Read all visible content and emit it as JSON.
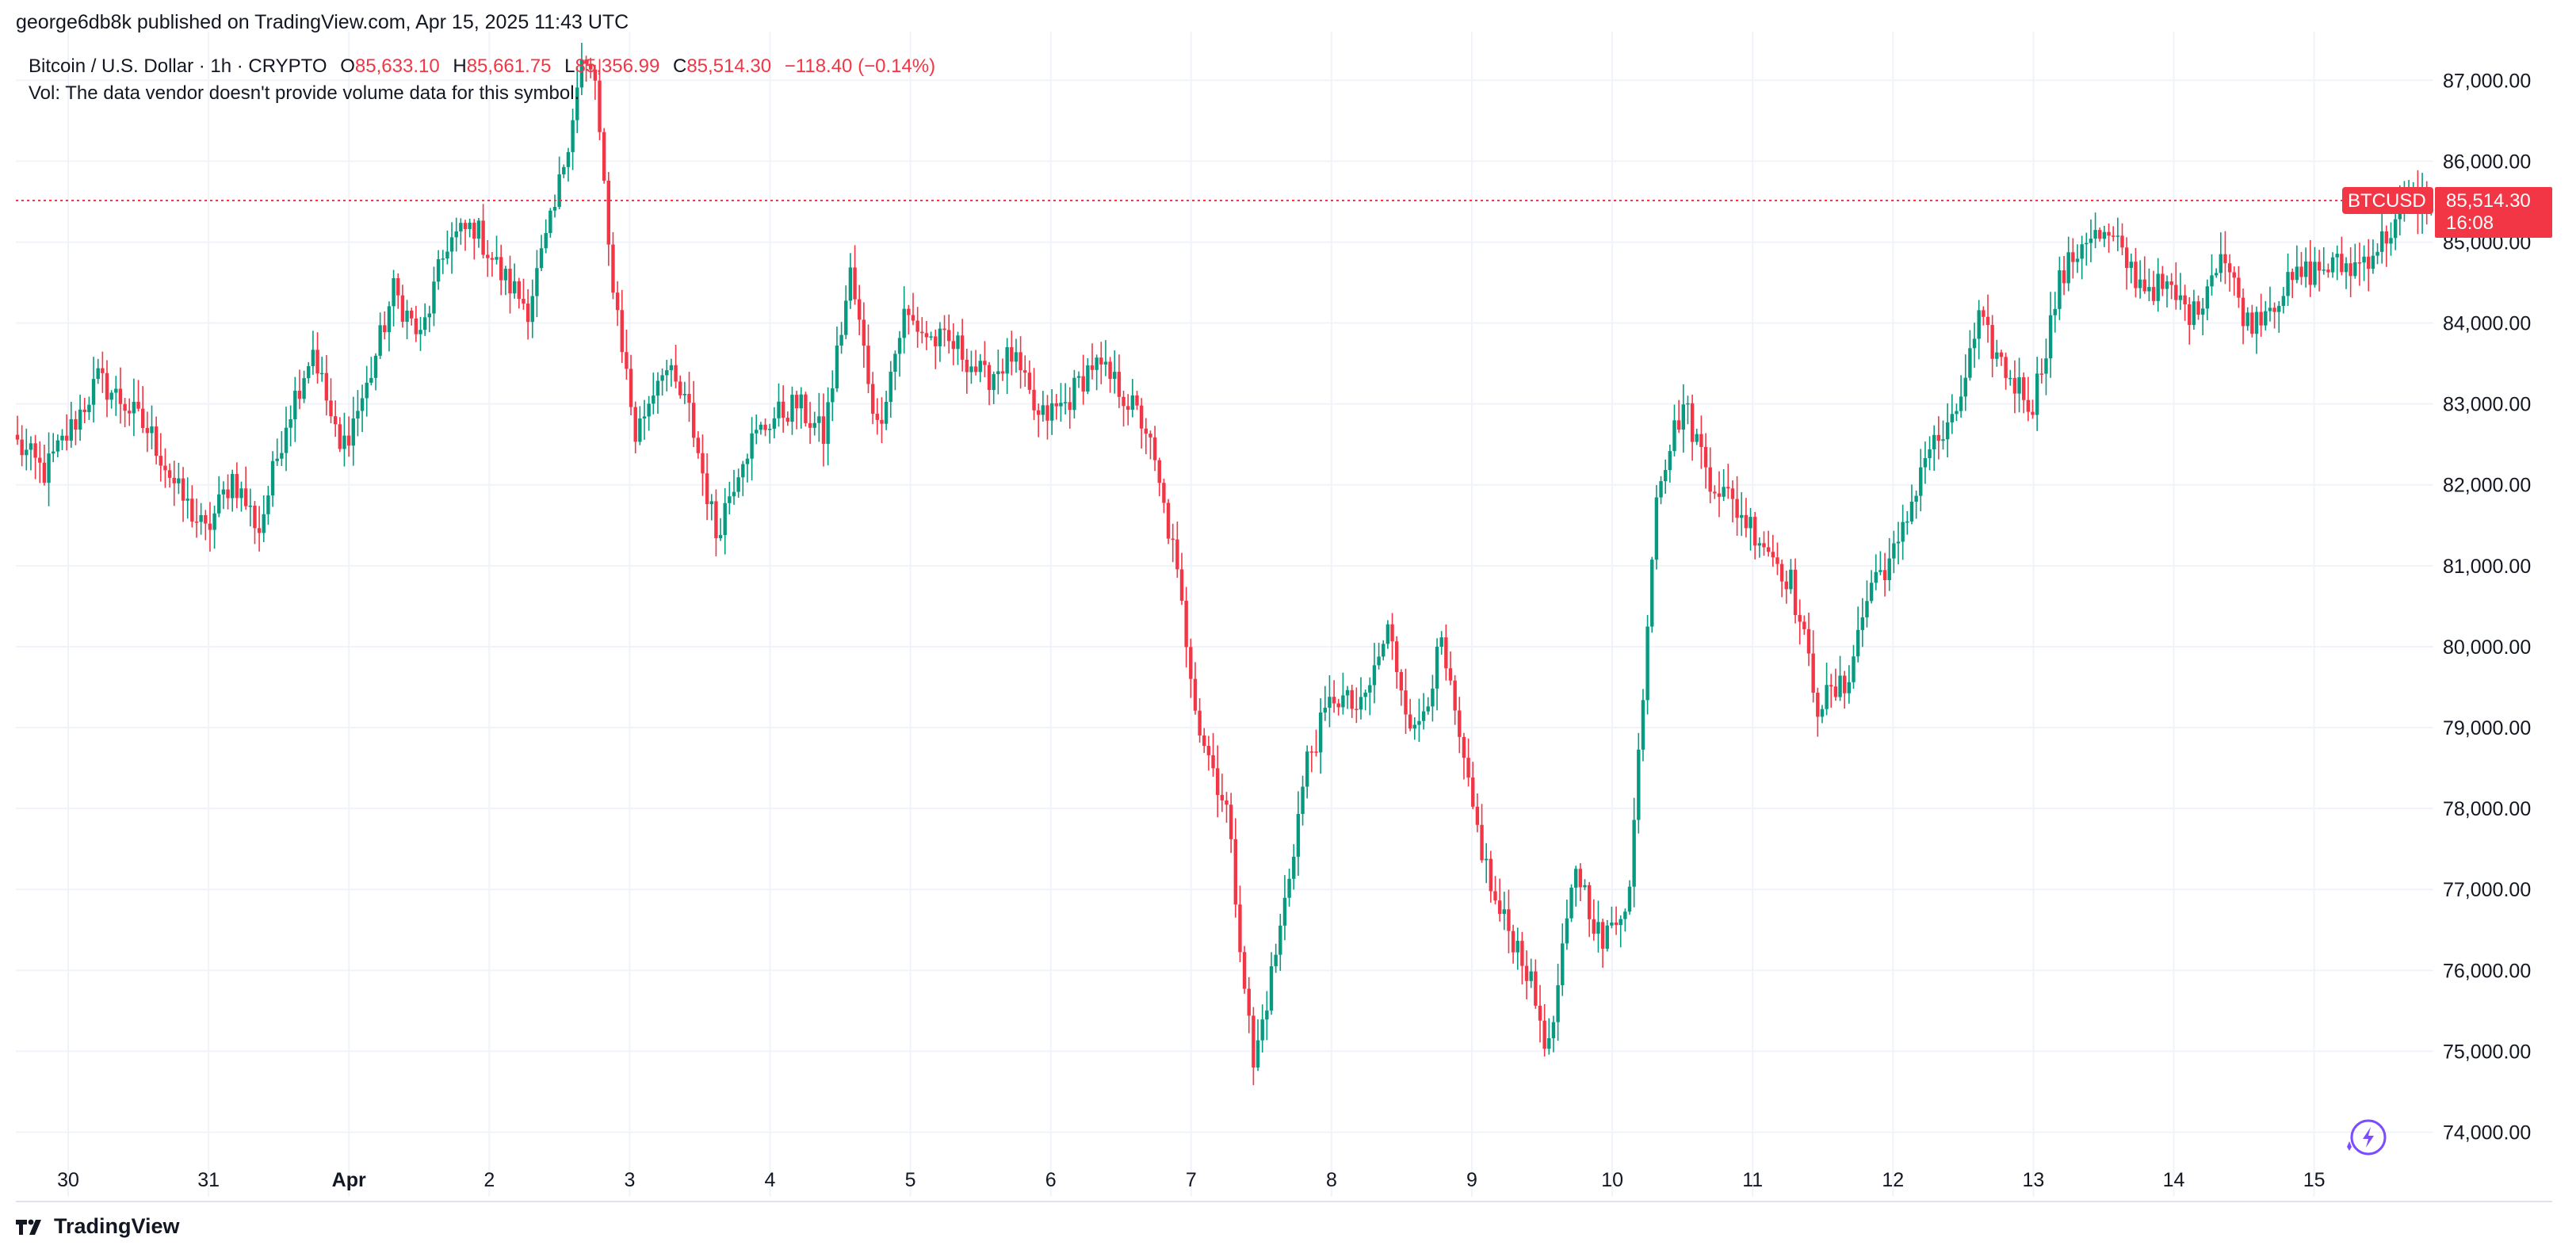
{
  "publisher_line": "george6db8k published on TradingView.com, Apr 15, 2025 11:43 UTC",
  "legend": {
    "symbol": "Bitcoin / U.S. Dollar · 1h · CRYPTO",
    "open_label": "O",
    "open": "85,633.10",
    "high_label": "H",
    "high": "85,661.75",
    "low_label": "L",
    "low": "85,356.99",
    "close_label": "C",
    "close": "85,514.30",
    "change": "−118.40 (−0.14%)",
    "volume_note": "Vol: The data vendor doesn't provide volume data for this symbol."
  },
  "price_badge": {
    "symbol": "BTCUSD",
    "price": "85,514.30",
    "countdown": "16:08"
  },
  "footer_brand": "TradingView",
  "colors": {
    "up": "#089981",
    "down": "#f23645",
    "grid": "#f0f3fa",
    "accent": "#7c4dff"
  },
  "chart_data": {
    "type": "candlestick",
    "symbol": "BTCUSD",
    "interval": "1h",
    "y_ticks": [
      "74,000.00",
      "75,000.00",
      "76,000.00",
      "77,000.00",
      "78,000.00",
      "79,000.00",
      "80,000.00",
      "81,000.00",
      "82,000.00",
      "83,000.00",
      "84,000.00",
      "85,000.00",
      "86,000.00",
      "87,000.00"
    ],
    "x_ticks": [
      "30",
      "31",
      "Apr",
      "2",
      "3",
      "4",
      "5",
      "6",
      "7",
      "8",
      "9",
      "10",
      "11",
      "12",
      "13",
      "14",
      "15"
    ],
    "ylim": [
      73300,
      87600
    ],
    "last_price": 85514.3,
    "grid": true,
    "close_path": [
      [
        0,
        82500
      ],
      [
        6,
        82150
      ],
      [
        12,
        82700
      ],
      [
        18,
        83300
      ],
      [
        24,
        83000
      ],
      [
        30,
        82600
      ],
      [
        36,
        81900
      ],
      [
        42,
        81400
      ],
      [
        48,
        82100
      ],
      [
        54,
        81450
      ],
      [
        60,
        82800
      ],
      [
        66,
        83700
      ],
      [
        72,
        82400
      ],
      [
        78,
        83200
      ],
      [
        84,
        84400
      ],
      [
        90,
        83800
      ],
      [
        96,
        85000
      ],
      [
        102,
        85200
      ],
      [
        108,
        84600
      ],
      [
        114,
        84200
      ],
      [
        120,
        85400
      ],
      [
        126,
        87200
      ],
      [
        129,
        87000
      ],
      [
        132,
        84900
      ],
      [
        138,
        82600
      ],
      [
        144,
        83500
      ],
      [
        150,
        82900
      ],
      [
        156,
        81400
      ],
      [
        162,
        82400
      ],
      [
        168,
        82800
      ],
      [
        174,
        83000
      ],
      [
        180,
        82600
      ],
      [
        186,
        84600
      ],
      [
        192,
        82700
      ],
      [
        198,
        84100
      ],
      [
        204,
        83800
      ],
      [
        210,
        83700
      ],
      [
        216,
        83300
      ],
      [
        222,
        83600
      ],
      [
        228,
        82800
      ],
      [
        234,
        83000
      ],
      [
        240,
        83500
      ],
      [
        246,
        83200
      ],
      [
        252,
        82700
      ],
      [
        258,
        81200
      ],
      [
        264,
        79000
      ],
      [
        270,
        78000
      ],
      [
        276,
        74800
      ],
      [
        282,
        76500
      ],
      [
        288,
        78600
      ],
      [
        294,
        79400
      ],
      [
        300,
        79200
      ],
      [
        306,
        80200
      ],
      [
        312,
        78900
      ],
      [
        318,
        80000
      ],
      [
        324,
        78200
      ],
      [
        330,
        76800
      ],
      [
        336,
        76200
      ],
      [
        342,
        75000
      ],
      [
        348,
        77300
      ],
      [
        354,
        76300
      ],
      [
        360,
        77000
      ],
      [
        366,
        82000
      ],
      [
        372,
        83000
      ],
      [
        378,
        82100
      ],
      [
        384,
        81700
      ],
      [
        390,
        81300
      ],
      [
        396,
        80800
      ],
      [
        402,
        79300
      ],
      [
        408,
        79500
      ],
      [
        414,
        80800
      ],
      [
        420,
        81200
      ],
      [
        426,
        82400
      ],
      [
        432,
        82700
      ],
      [
        438,
        84000
      ],
      [
        444,
        83400
      ],
      [
        450,
        83000
      ],
      [
        456,
        84500
      ],
      [
        462,
        85100
      ],
      [
        468,
        85000
      ],
      [
        474,
        84500
      ],
      [
        480,
        84400
      ],
      [
        486,
        84100
      ],
      [
        492,
        84900
      ],
      [
        498,
        84000
      ],
      [
        504,
        84300
      ],
      [
        510,
        84600
      ],
      [
        516,
        84700
      ],
      [
        522,
        84700
      ],
      [
        528,
        85000
      ],
      [
        534,
        85514
      ]
    ]
  }
}
